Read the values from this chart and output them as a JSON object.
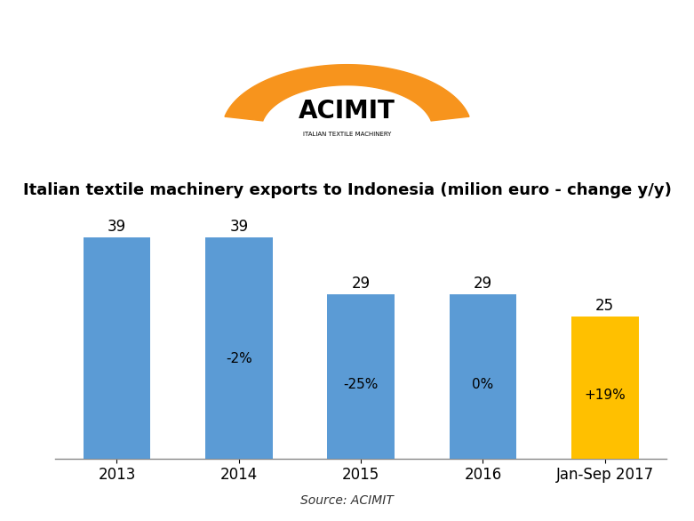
{
  "title": "Italian textile machinery exports to Indonesia (milion euro - change y/y)",
  "categories": [
    "2013",
    "2014",
    "2015",
    "2016",
    "Jan-Sep 2017"
  ],
  "values": [
    39,
    39,
    29,
    29,
    25
  ],
  "change_labels": [
    "",
    "-2%",
    "-25%",
    "0%",
    "+19%"
  ],
  "bar_colors": [
    "#5B9BD5",
    "#5B9BD5",
    "#5B9BD5",
    "#5B9BD5",
    "#FFC000"
  ],
  "source_text": "Source: ACIMIT",
  "title_fontsize": 13,
  "label_fontsize": 12,
  "change_fontsize": 11,
  "source_fontsize": 10,
  "background_color": "#FFFFFF",
  "ylim": [
    0,
    46
  ],
  "bar_width": 0.55,
  "logo_text": "ACIMIT",
  "logo_subtext": "ITALIAN TEXTILE MACHINERY",
  "logo_arch_color": "#F7941D",
  "logo_text_color": "#000000"
}
